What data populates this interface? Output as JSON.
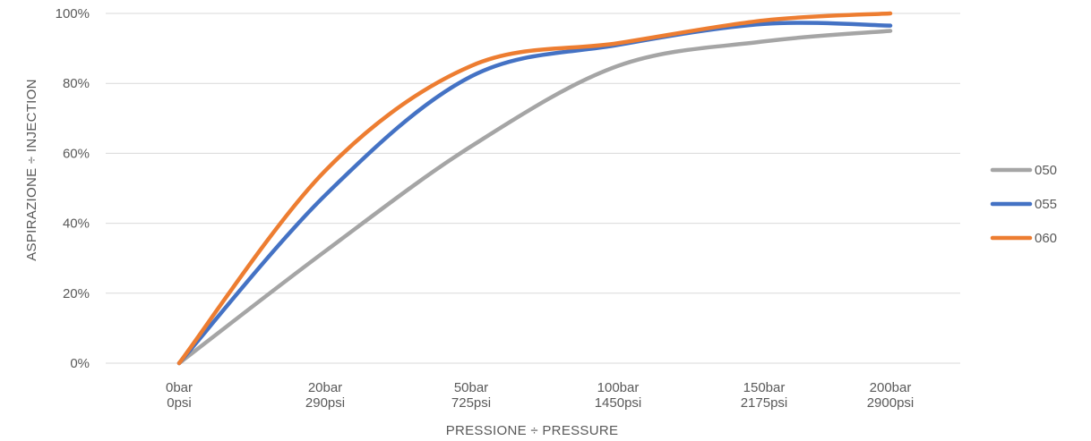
{
  "chart_data": {
    "type": "line",
    "title": "",
    "xlabel": "PRESSIONE ÷ PRESSURE",
    "ylabel": "ASPIRAZIONE ÷ INJECTION",
    "categories": [
      [
        "0bar",
        "0psi"
      ],
      [
        "20bar",
        "290psi"
      ],
      [
        "50bar",
        "725psi"
      ],
      [
        "100bar",
        "1450psi"
      ],
      [
        "150bar",
        "2175psi"
      ],
      [
        "200bar",
        "2900psi"
      ]
    ],
    "y_ticks": [
      "0%",
      "20%",
      "40%",
      "60%",
      "80%",
      "100%"
    ],
    "ylim": [
      0,
      100
    ],
    "grid": true,
    "smooth": true,
    "legend": "right",
    "series": [
      {
        "name": "050",
        "color": "#A5A5A5",
        "values": [
          0,
          32,
          62,
          85,
          92,
          95
        ]
      },
      {
        "name": "055",
        "color": "#4472C4",
        "values": [
          0,
          48,
          82,
          91,
          97,
          96.5
        ]
      },
      {
        "name": "060",
        "color": "#ED7D31",
        "values": [
          0,
          55,
          85,
          91.5,
          98,
          100
        ]
      }
    ]
  }
}
